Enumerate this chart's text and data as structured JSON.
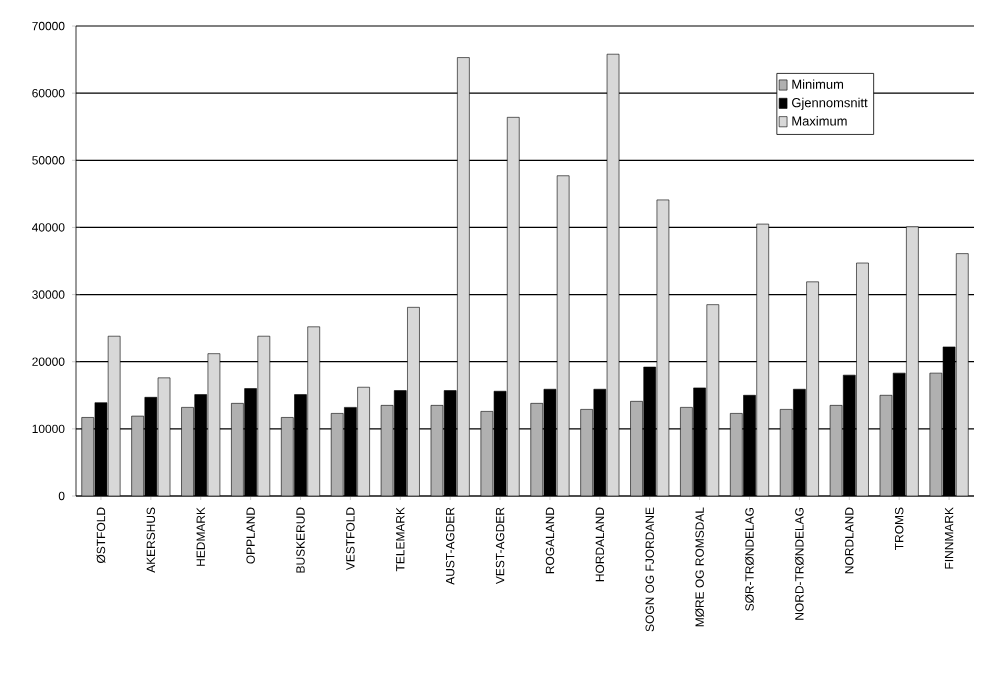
{
  "chart_data": {
    "type": "bar",
    "categories": [
      "ØSTFOLD",
      "AKERSHUS",
      "HEDMARK",
      "OPPLAND",
      "BUSKERUD",
      "VESTFOLD",
      "TELEMARK",
      "AUST-AGDER",
      "VEST-AGDER",
      "ROGALAND",
      "HORDALAND",
      "SOGN OG FJORDANE",
      "MØRE OG ROMSDAL",
      "SØR-TRØNDELAG",
      "NORD-TRØNDELAG",
      "NORDLAND",
      "TROMS",
      "FINNMARK"
    ],
    "series": [
      {
        "name": "Minimum",
        "color": "#b0b0b0",
        "values": [
          11700,
          11900,
          13200,
          13800,
          11700,
          12300,
          13500,
          13500,
          12600,
          13800,
          12900,
          14100,
          13200,
          12300,
          12900,
          13500,
          15000,
          18300
        ]
      },
      {
        "name": "Gjennomsnitt",
        "color": "#000000",
        "values": [
          13900,
          14700,
          15100,
          16000,
          15100,
          13200,
          15700,
          15700,
          15600,
          15900,
          15900,
          19200,
          16100,
          15000,
          15900,
          18000,
          18300,
          22200
        ]
      },
      {
        "name": "Maximum",
        "color": "#d8d8d8",
        "values": [
          23800,
          17600,
          21200,
          23800,
          25200,
          16200,
          28100,
          65300,
          56400,
          47700,
          65800,
          44100,
          28500,
          40500,
          31900,
          34700,
          40100,
          36100
        ]
      }
    ],
    "ylim": [
      0,
      70000
    ],
    "yticks": [
      0,
      10000,
      20000,
      30000,
      40000,
      50000,
      60000,
      70000
    ],
    "grid": "y",
    "legend": "top right"
  }
}
